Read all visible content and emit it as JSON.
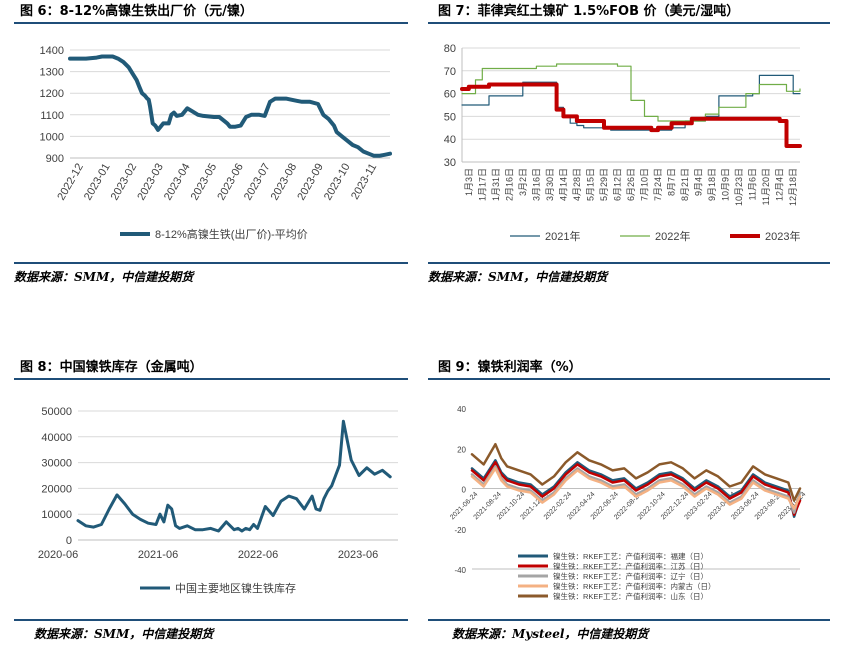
{
  "figures": {
    "fig6": {
      "title": "图 6：8-12%高镍生铁出厂价（元/镍）",
      "source": "数据来源：SMM，中信建投期货"
    },
    "fig7": {
      "title": "图 7：菲律宾红土镍矿 1.5%FOB 价（美元/湿吨）",
      "source": "数据来源：SMM，中信建投期货"
    },
    "fig8": {
      "title": "图 8：中国镍铁库存（金属吨）",
      "source": "数据来源：SMM，中信建投期货"
    },
    "fig9": {
      "title": "图 9：镍铁利润率（%）",
      "source": "数据来源：Mysteel，中信建投期货"
    }
  },
  "chart_data": [
    {
      "id": "fig6",
      "type": "line",
      "title": "8-12%高镍生铁出厂价（元/镍）",
      "xlabel": "",
      "ylabel": "",
      "ylim": [
        900,
        1400
      ],
      "yticks": [
        900,
        1000,
        1100,
        1200,
        1300,
        1400
      ],
      "xlim": [
        0,
        12
      ],
      "xticks": [
        "2022-12",
        "2023-01",
        "2023-02",
        "2023-03",
        "2023-04",
        "2023-05",
        "2023-06",
        "2023-07",
        "2023-08",
        "2023-09",
        "2023-10",
        "2023-11"
      ],
      "grid": "horizontal",
      "legend_position": "bottom",
      "series": [
        {
          "name": "8-12%高镍生铁(出厂价)-平均价",
          "color": "#215a78",
          "width": 4,
          "x": [
            0.0,
            0.6,
            1.0,
            1.2,
            1.4,
            1.6,
            1.8,
            2.0,
            2.2,
            2.35,
            2.5,
            2.6,
            2.7,
            2.8,
            2.9,
            2.95,
            3.0,
            3.1,
            3.2,
            3.3,
            3.5,
            3.7,
            3.8,
            3.9,
            4.0,
            4.2,
            4.4,
            4.6,
            4.8,
            5.0,
            5.4,
            5.6,
            5.8,
            5.9,
            6.0,
            6.2,
            6.4,
            6.6,
            6.8,
            7.0,
            7.1,
            7.3,
            7.5,
            7.7,
            7.9,
            8.1,
            8.3,
            8.5,
            8.7,
            9.0,
            9.3,
            9.5,
            9.7,
            9.9,
            10.0,
            10.2,
            10.4,
            10.6,
            10.8,
            11.0,
            11.2,
            11.4,
            11.6,
            11.8,
            12.0
          ],
          "y": [
            1360,
            1360,
            1365,
            1370,
            1370,
            1370,
            1360,
            1345,
            1320,
            1290,
            1260,
            1230,
            1200,
            1190,
            1175,
            1170,
            1140,
            1060,
            1050,
            1030,
            1060,
            1060,
            1100,
            1110,
            1095,
            1100,
            1130,
            1115,
            1100,
            1095,
            1090,
            1090,
            1070,
            1060,
            1045,
            1045,
            1050,
            1090,
            1100,
            1100,
            1100,
            1095,
            1160,
            1175,
            1175,
            1175,
            1170,
            1165,
            1160,
            1160,
            1150,
            1100,
            1080,
            1050,
            1020,
            1000,
            980,
            960,
            950,
            930,
            920,
            910,
            910,
            915,
            920
          ]
        }
      ]
    },
    {
      "id": "fig7",
      "type": "line",
      "title": "菲律宾红土镍矿 1.5%FOB 价（美元/湿吨）",
      "xlabel": "",
      "ylabel": "",
      "ylim": [
        30,
        80
      ],
      "yticks": [
        30,
        40,
        50,
        60,
        70,
        80
      ],
      "xlim": [
        0,
        50
      ],
      "xticks": [
        "1月3日",
        "1月17日",
        "1月31日",
        "2月16日",
        "3月2日",
        "3月16日",
        "3月30日",
        "4月14日",
        "4月28日",
        "5月15日",
        "5月29日",
        "6月12日",
        "6月26日",
        "7月10日",
        "7月24日",
        "8月7日",
        "8月21日",
        "9月4日",
        "9月18日",
        "10月9日",
        "10月23日",
        "11月6日",
        "11月20日",
        "12月4日",
        "12月18日"
      ],
      "grid": "horizontal",
      "legend_position": "bottom",
      "series": [
        {
          "name": "2021年",
          "color": "#215a78",
          "width": 1.2,
          "x": [
            0,
            3,
            4,
            8,
            9,
            13,
            14,
            15,
            16,
            17,
            18,
            22,
            30,
            31,
            33,
            34,
            36,
            38,
            40,
            41,
            43,
            44,
            48,
            49,
            50
          ],
          "y": [
            55,
            55,
            59,
            59,
            65,
            65,
            54,
            50,
            47,
            46,
            45,
            44,
            44,
            45,
            48,
            48,
            50,
            59,
            59,
            59,
            60,
            68,
            68,
            60,
            60
          ]
        },
        {
          "name": "2022年",
          "color": "#70ad47",
          "width": 1.2,
          "x": [
            0,
            2,
            3,
            9,
            11,
            14,
            23,
            25,
            27,
            29,
            34,
            36,
            38,
            42,
            44,
            46,
            48,
            50
          ],
          "y": [
            60,
            66,
            71,
            71,
            72,
            73,
            72,
            57,
            50,
            48,
            48,
            51,
            54,
            60,
            64,
            64,
            61,
            62
          ]
        },
        {
          "name": "2023年",
          "color": "#c00000",
          "width": 4,
          "x": [
            0,
            1,
            4,
            6,
            8,
            13,
            14,
            15,
            17,
            21,
            25,
            28,
            29,
            31,
            34,
            38,
            45,
            47,
            48,
            50
          ],
          "y": [
            62,
            63,
            64,
            64,
            64,
            64,
            53,
            50,
            48,
            45,
            45,
            44,
            45,
            47,
            49,
            49,
            49,
            48,
            37,
            37
          ]
        }
      ]
    },
    {
      "id": "fig8",
      "type": "line",
      "title": "中国镍铁库存（金属吨）",
      "xlabel": "",
      "ylabel": "",
      "ylim": [
        0,
        50000
      ],
      "yticks": [
        0,
        10000,
        20000,
        30000,
        40000,
        50000
      ],
      "xlim": [
        0,
        41
      ],
      "xticks": [
        "2020-06",
        "2021-06",
        "2022-06",
        "2023-06"
      ],
      "grid": "horizontal",
      "legend_position": "bottom",
      "series": [
        {
          "name": "中国主要地区镍生铁库存",
          "color": "#215a78",
          "width": 3,
          "x": [
            0.0,
            1.0,
            2.0,
            3.0,
            4.0,
            5.0,
            6.0,
            7.0,
            8.0,
            9.0,
            10.0,
            10.5,
            11.0,
            11.5,
            12.0,
            12.5,
            13.0,
            14.0,
            15.0,
            16.0,
            17.0,
            18.0,
            19.0,
            20.0,
            20.5,
            21.0,
            21.5,
            22.0,
            22.5,
            23.0,
            24.0,
            25.0,
            26.0,
            27.0,
            28.0,
            29.0,
            30.0,
            30.5,
            31.0,
            31.5,
            32.0,
            32.5,
            33.0,
            33.5,
            34.0,
            35.0,
            36.0,
            37.0,
            38.0,
            39.0,
            40.0
          ],
          "y": [
            7500,
            5500,
            5000,
            6000,
            12000,
            17500,
            14000,
            10000,
            8000,
            6500,
            6000,
            10000,
            7000,
            13500,
            12000,
            5500,
            4500,
            5500,
            4000,
            4000,
            4500,
            3500,
            7000,
            4000,
            4500,
            3500,
            4500,
            4000,
            6000,
            4500,
            13000,
            9500,
            15000,
            17000,
            16000,
            12000,
            17000,
            12000,
            11500,
            16000,
            19000,
            21000,
            25000,
            29000,
            46000,
            31000,
            25000,
            28000,
            25500,
            27000,
            24500
          ]
        }
      ]
    },
    {
      "id": "fig9",
      "type": "line",
      "title": "镍铁利润率（%）",
      "xlabel": "",
      "ylabel": "",
      "ylim": [
        -40,
        40
      ],
      "yticks": [
        -40,
        -20,
        0,
        20,
        40
      ],
      "xlim": [
        0,
        28
      ],
      "xticks": [
        "2021-06-24",
        "2021-08-24",
        "2021-10-24",
        "2021-12-24",
        "2022-02-24",
        "2022-04-24",
        "2022-06-24",
        "2022-08-24",
        "2022-10-24",
        "2022-12-24",
        "2023-02-24",
        "2023-04-24",
        "2023-06-24",
        "2023-08-24",
        "2023-10-24"
      ],
      "grid": "none",
      "legend_position": "bottom",
      "series": [
        {
          "name": "镍生铁：RKEF工艺：产值利润率：福建（日）",
          "color": "#215a78",
          "x": [
            0,
            1,
            2,
            2.5,
            3,
            4,
            5,
            6,
            7,
            8,
            9,
            10,
            11,
            12,
            13,
            14,
            15,
            16,
            17,
            18,
            19,
            20,
            21,
            22,
            23,
            24,
            25,
            26,
            27,
            27.5,
            28
          ],
          "y": [
            10,
            5,
            14,
            8,
            5,
            3,
            2,
            -3,
            1,
            8,
            13,
            9,
            7,
            4,
            5,
            0,
            3,
            7,
            8,
            5,
            0,
            4,
            1,
            -4,
            -1,
            7,
            3,
            1,
            -1,
            -14,
            -5
          ]
        },
        {
          "name": "镍生铁：RKEF工艺：产值利润率：江苏（日）",
          "color": "#c00000",
          "x": [
            0,
            1,
            2,
            2.5,
            3,
            4,
            5,
            6,
            7,
            8,
            9,
            10,
            11,
            12,
            13,
            14,
            15,
            16,
            17,
            18,
            19,
            20,
            21,
            22,
            23,
            24,
            25,
            26,
            27,
            27.5,
            28
          ],
          "y": [
            9,
            4,
            13,
            7,
            4,
            2,
            1,
            -4,
            0,
            7,
            12,
            8,
            6,
            3,
            4,
            -1,
            2,
            6,
            7,
            4,
            -1,
            3,
            0,
            -5,
            -2,
            6,
            2,
            0,
            -2,
            -13,
            -6
          ]
        },
        {
          "name": "镍生铁：RKEF工艺：产值利润率：辽宁（日）",
          "color": "#a5a5a5",
          "x": [
            0,
            1,
            2,
            2.5,
            3,
            4,
            5,
            6,
            7,
            8,
            9,
            10,
            11,
            12,
            13,
            14,
            15,
            16,
            17,
            18,
            19,
            20,
            21,
            22,
            23,
            24,
            25,
            26,
            27,
            27.5,
            28
          ],
          "y": [
            7,
            2,
            11,
            5,
            2,
            0,
            -1,
            -6,
            -2,
            5,
            10,
            6,
            4,
            1,
            2,
            -3,
            0,
            4,
            5,
            2,
            -3,
            1,
            -2,
            -7,
            -4,
            4,
            0,
            -2,
            -4,
            -12,
            -2
          ]
        },
        {
          "name": "镍生铁：RKEF工艺：产值利润率：内蒙古（日）",
          "color": "#f4b183",
          "x": [
            0,
            1,
            2,
            2.5,
            3,
            4,
            5,
            6,
            7,
            8,
            9,
            10,
            11,
            12,
            13,
            14,
            15,
            16,
            17,
            18,
            19,
            20,
            21,
            22,
            23,
            24,
            25,
            26,
            27,
            27.5,
            28
          ],
          "y": [
            6,
            1,
            10,
            4,
            1,
            -1,
            -2,
            -7,
            -3,
            4,
            9,
            5,
            3,
            0,
            1,
            -4,
            -1,
            3,
            4,
            1,
            -4,
            0,
            -3,
            -8,
            -5,
            3,
            -1,
            -3,
            -5,
            -10,
            -4
          ]
        },
        {
          "name": "镍生铁：RKEF工艺：产值利润率：山东（日）",
          "color": "#8b5a2b",
          "x": [
            0,
            1,
            2,
            2.5,
            3,
            4,
            5,
            6,
            7,
            8,
            9,
            10,
            11,
            12,
            13,
            14,
            15,
            16,
            17,
            18,
            19,
            20,
            21,
            22,
            23,
            24,
            25,
            26,
            27,
            27.5,
            28
          ],
          "y": [
            17,
            12,
            22,
            15,
            11,
            9,
            7,
            2,
            6,
            13,
            18,
            14,
            12,
            9,
            10,
            5,
            8,
            12,
            13,
            10,
            5,
            9,
            6,
            1,
            3,
            11,
            7,
            5,
            3,
            -6,
            0
          ]
        }
      ]
    }
  ]
}
